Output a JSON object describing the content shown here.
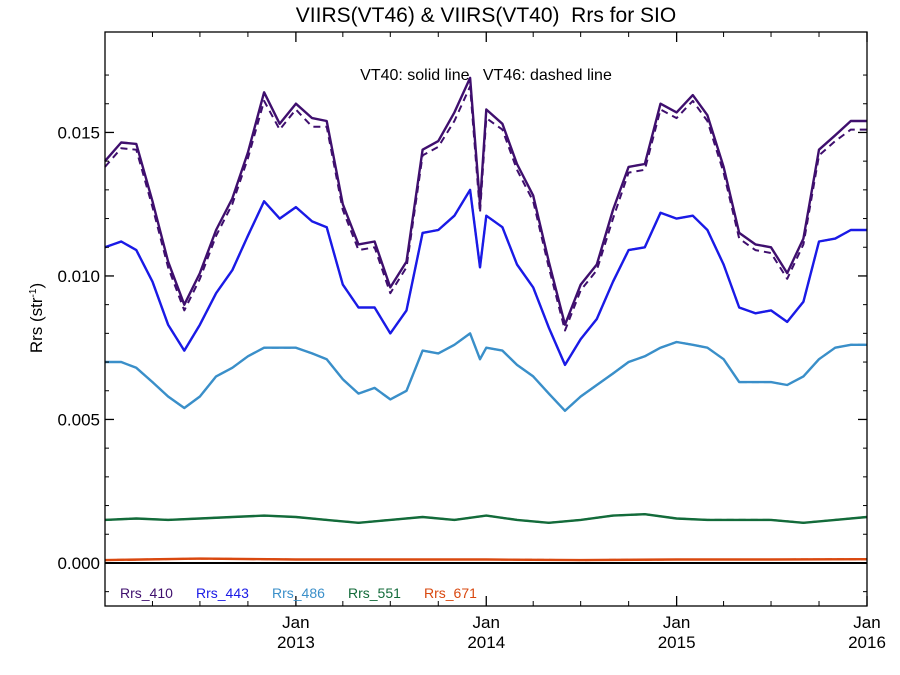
{
  "chart_data": {
    "type": "line",
    "title": "VIIRS(VT46) & VIIRS(VT40)  Rrs for SIO",
    "annotation": "VT40: solid line   VT46: dashed line",
    "ylabel": "Rrs (str",
    "ylabel_sup": "-1",
    "ylabel_close": ")",
    "ylim": [
      -0.0015,
      0.0185
    ],
    "xlim": [
      "2012-01-01",
      "2016-01-01"
    ],
    "grid": false,
    "legend_position": "bottom-left",
    "y_ticks": [
      {
        "value": 0.0,
        "label": "0.000"
      },
      {
        "value": 0.005,
        "label": "0.005"
      },
      {
        "value": 0.01,
        "label": "0.010"
      },
      {
        "value": 0.015,
        "label": "0.015"
      }
    ],
    "x_ticks": [
      {
        "date": "2013-01-01",
        "month": "Jan",
        "year": "2013"
      },
      {
        "date": "2014-01-01",
        "month": "Jan",
        "year": "2014"
      },
      {
        "date": "2015-01-01",
        "month": "Jan",
        "year": "2015"
      },
      {
        "date": "2016-01-01",
        "month": "Jan",
        "year": "2016"
      }
    ],
    "series": [
      {
        "name": "Rrs_410",
        "color": "#3f0f6e",
        "x": [
          "2012-01-01",
          "2012-02-01",
          "2012-03-01",
          "2012-04-01",
          "2012-05-01",
          "2012-06-01",
          "2012-07-01",
          "2012-08-01",
          "2012-09-01",
          "2012-10-01",
          "2012-11-01",
          "2012-12-01",
          "2013-01-01",
          "2013-02-01",
          "2013-03-01",
          "2013-04-01",
          "2013-05-01",
          "2013-06-01",
          "2013-07-01",
          "2013-08-01",
          "2013-09-01",
          "2013-10-01",
          "2013-11-01",
          "2013-12-01",
          "2013-12-20",
          "2014-01-01",
          "2014-02-01",
          "2014-03-01",
          "2014-04-01",
          "2014-05-01",
          "2014-06-01",
          "2014-07-01",
          "2014-08-01",
          "2014-09-01",
          "2014-10-01",
          "2014-11-01",
          "2014-12-01",
          "2015-01-01",
          "2015-02-01",
          "2015-03-01",
          "2015-04-01",
          "2015-05-01",
          "2015-06-01",
          "2015-07-01",
          "2015-08-01",
          "2015-09-01",
          "2015-10-01",
          "2015-11-01",
          "2015-12-01",
          "2016-01-01"
        ],
        "values": [
          0.014,
          0.01465,
          0.0146,
          0.0126,
          0.0105,
          0.009,
          0.0101,
          0.0116,
          0.0127,
          0.0143,
          0.0164,
          0.0153,
          0.016,
          0.0155,
          0.0154,
          0.0125,
          0.0111,
          0.0112,
          0.0096,
          0.0105,
          0.0144,
          0.0147,
          0.0157,
          0.0169,
          0.0125,
          0.0158,
          0.0153,
          0.0139,
          0.0128,
          0.0105,
          0.0083,
          0.0097,
          0.0104,
          0.0123,
          0.0138,
          0.0139,
          0.016,
          0.0157,
          0.0163,
          0.0156,
          0.0138,
          0.0115,
          0.0111,
          0.011,
          0.0101,
          0.0113,
          0.0144,
          0.0149,
          0.0154,
          0.0154
        ],
        "values_vt46": [
          0.0138,
          0.01445,
          0.0144,
          0.0124,
          0.0103,
          0.0088,
          0.0099,
          0.0114,
          0.0125,
          0.0141,
          0.0161,
          0.0151,
          0.0158,
          0.0152,
          0.0152,
          0.0123,
          0.0109,
          0.011,
          0.0094,
          0.0103,
          0.0142,
          0.0145,
          0.0154,
          0.0166,
          0.0122,
          0.0155,
          0.0151,
          0.0137,
          0.0126,
          0.0103,
          0.0081,
          0.0095,
          0.0102,
          0.012,
          0.0136,
          0.0137,
          0.0158,
          0.0155,
          0.0161,
          0.0154,
          0.0136,
          0.0113,
          0.0109,
          0.0108,
          0.0099,
          0.0111,
          0.0142,
          0.0147,
          0.0151,
          0.0151
        ]
      },
      {
        "name": "Rrs_443",
        "color": "#1a1ae6",
        "x": [
          "2012-01-01",
          "2012-02-01",
          "2012-03-01",
          "2012-04-01",
          "2012-05-01",
          "2012-06-01",
          "2012-07-01",
          "2012-08-01",
          "2012-09-01",
          "2012-10-01",
          "2012-11-01",
          "2012-12-01",
          "2013-01-01",
          "2013-02-01",
          "2013-03-01",
          "2013-04-01",
          "2013-05-01",
          "2013-06-01",
          "2013-07-01",
          "2013-08-01",
          "2013-09-01",
          "2013-10-01",
          "2013-11-01",
          "2013-12-01",
          "2013-12-20",
          "2014-01-01",
          "2014-02-01",
          "2014-03-01",
          "2014-04-01",
          "2014-05-01",
          "2014-06-01",
          "2014-07-01",
          "2014-08-01",
          "2014-09-01",
          "2014-10-01",
          "2014-11-01",
          "2014-12-01",
          "2015-01-01",
          "2015-02-01",
          "2015-03-01",
          "2015-04-01",
          "2015-05-01",
          "2015-06-01",
          "2015-07-01",
          "2015-08-01",
          "2015-09-01",
          "2015-10-01",
          "2015-11-01",
          "2015-12-01",
          "2016-01-01"
        ],
        "values": [
          0.011,
          0.0112,
          0.0109,
          0.0098,
          0.0083,
          0.0074,
          0.0083,
          0.0094,
          0.0102,
          0.0114,
          0.0126,
          0.012,
          0.0124,
          0.0119,
          0.0117,
          0.0097,
          0.0089,
          0.0089,
          0.008,
          0.0088,
          0.0115,
          0.0116,
          0.0121,
          0.013,
          0.0103,
          0.0121,
          0.0117,
          0.0104,
          0.0096,
          0.0082,
          0.0069,
          0.0078,
          0.0085,
          0.0098,
          0.0109,
          0.011,
          0.0122,
          0.012,
          0.0121,
          0.0116,
          0.0104,
          0.0089,
          0.0087,
          0.0088,
          0.0084,
          0.0091,
          0.0112,
          0.0113,
          0.0116,
          0.0116
        ],
        "values_vt46": [
          0.011,
          0.0112,
          0.0109,
          0.0098,
          0.0083,
          0.0074,
          0.0083,
          0.0094,
          0.0102,
          0.0114,
          0.0126,
          0.012,
          0.0124,
          0.0119,
          0.0117,
          0.0097,
          0.0089,
          0.0089,
          0.008,
          0.0088,
          0.0115,
          0.0116,
          0.0121,
          0.013,
          0.0103,
          0.0121,
          0.0117,
          0.0104,
          0.0096,
          0.0082,
          0.0069,
          0.0078,
          0.0085,
          0.0098,
          0.0109,
          0.011,
          0.0122,
          0.012,
          0.0121,
          0.0116,
          0.0104,
          0.0089,
          0.0087,
          0.0088,
          0.0084,
          0.0091,
          0.0112,
          0.0113,
          0.0116,
          0.0116
        ]
      },
      {
        "name": "Rrs_486",
        "color": "#3a8fc9",
        "x": [
          "2012-01-01",
          "2012-02-01",
          "2012-03-01",
          "2012-04-01",
          "2012-05-01",
          "2012-06-01",
          "2012-07-01",
          "2012-08-01",
          "2012-09-01",
          "2012-10-01",
          "2012-11-01",
          "2012-12-01",
          "2013-01-01",
          "2013-02-01",
          "2013-03-01",
          "2013-04-01",
          "2013-05-01",
          "2013-06-01",
          "2013-07-01",
          "2013-08-01",
          "2013-09-01",
          "2013-10-01",
          "2013-11-01",
          "2013-12-01",
          "2013-12-20",
          "2014-01-01",
          "2014-02-01",
          "2014-03-01",
          "2014-04-01",
          "2014-05-01",
          "2014-06-01",
          "2014-07-01",
          "2014-08-01",
          "2014-09-01",
          "2014-10-01",
          "2014-11-01",
          "2014-12-01",
          "2015-01-01",
          "2015-02-01",
          "2015-03-01",
          "2015-04-01",
          "2015-05-01",
          "2015-06-01",
          "2015-07-01",
          "2015-08-01",
          "2015-09-01",
          "2015-10-01",
          "2015-11-01",
          "2015-12-01",
          "2016-01-01"
        ],
        "values": [
          0.007,
          0.007,
          0.0068,
          0.0063,
          0.0058,
          0.0054,
          0.0058,
          0.0065,
          0.0068,
          0.0072,
          0.0075,
          0.0075,
          0.0075,
          0.0073,
          0.0071,
          0.0064,
          0.0059,
          0.0061,
          0.0057,
          0.006,
          0.0074,
          0.0073,
          0.0076,
          0.008,
          0.0071,
          0.0075,
          0.0074,
          0.0069,
          0.0065,
          0.0059,
          0.0053,
          0.0058,
          0.0062,
          0.0066,
          0.007,
          0.0072,
          0.0075,
          0.0077,
          0.0076,
          0.0075,
          0.0071,
          0.0063,
          0.0063,
          0.0063,
          0.0062,
          0.0065,
          0.0071,
          0.0075,
          0.0076,
          0.0076
        ],
        "values_vt46": [
          0.007,
          0.007,
          0.0068,
          0.0063,
          0.0058,
          0.0054,
          0.0058,
          0.0065,
          0.0068,
          0.0072,
          0.0075,
          0.0075,
          0.0075,
          0.0073,
          0.0071,
          0.0064,
          0.0059,
          0.0061,
          0.0057,
          0.006,
          0.0074,
          0.0073,
          0.0076,
          0.008,
          0.0071,
          0.0075,
          0.0074,
          0.0069,
          0.0065,
          0.0059,
          0.0053,
          0.0058,
          0.0062,
          0.0066,
          0.007,
          0.0072,
          0.0075,
          0.0077,
          0.0076,
          0.0075,
          0.0071,
          0.0063,
          0.0063,
          0.0063,
          0.0062,
          0.0065,
          0.0071,
          0.0075,
          0.0076,
          0.0076
        ]
      },
      {
        "name": "Rrs_551",
        "color": "#136b3a",
        "x": [
          "2012-01-01",
          "2012-03-01",
          "2012-05-01",
          "2012-07-01",
          "2012-09-01",
          "2012-11-01",
          "2013-01-01",
          "2013-03-01",
          "2013-05-01",
          "2013-07-01",
          "2013-09-01",
          "2013-11-01",
          "2014-01-01",
          "2014-03-01",
          "2014-05-01",
          "2014-07-01",
          "2014-09-01",
          "2014-11-01",
          "2015-01-01",
          "2015-03-01",
          "2015-05-01",
          "2015-07-01",
          "2015-09-01",
          "2015-11-01",
          "2016-01-01"
        ],
        "values": [
          0.0015,
          0.00155,
          0.0015,
          0.00155,
          0.0016,
          0.00165,
          0.0016,
          0.0015,
          0.0014,
          0.0015,
          0.0016,
          0.0015,
          0.00165,
          0.0015,
          0.0014,
          0.0015,
          0.00165,
          0.0017,
          0.00155,
          0.0015,
          0.0015,
          0.0015,
          0.0014,
          0.0015,
          0.0016
        ],
        "values_vt46": [
          0.0015,
          0.00155,
          0.0015,
          0.00155,
          0.0016,
          0.00165,
          0.0016,
          0.0015,
          0.0014,
          0.0015,
          0.0016,
          0.0015,
          0.00165,
          0.0015,
          0.0014,
          0.0015,
          0.00165,
          0.0017,
          0.00155,
          0.0015,
          0.0015,
          0.0015,
          0.0014,
          0.0015,
          0.0016
        ]
      },
      {
        "name": "Rrs_671",
        "color": "#d9480f",
        "x": [
          "2012-01-01",
          "2012-07-01",
          "2013-01-01",
          "2013-07-01",
          "2014-01-01",
          "2014-07-01",
          "2015-01-01",
          "2015-07-01",
          "2016-01-01"
        ],
        "values": [
          0.0001,
          0.00015,
          0.00012,
          0.00012,
          0.00012,
          0.0001,
          0.00012,
          0.00012,
          0.00013
        ],
        "values_vt46": [
          0.0001,
          0.00015,
          0.00012,
          0.00012,
          0.00012,
          0.0001,
          0.00012,
          0.00012,
          0.00013
        ]
      }
    ],
    "reference_line": {
      "y": 0.0,
      "color": "#000000"
    }
  }
}
